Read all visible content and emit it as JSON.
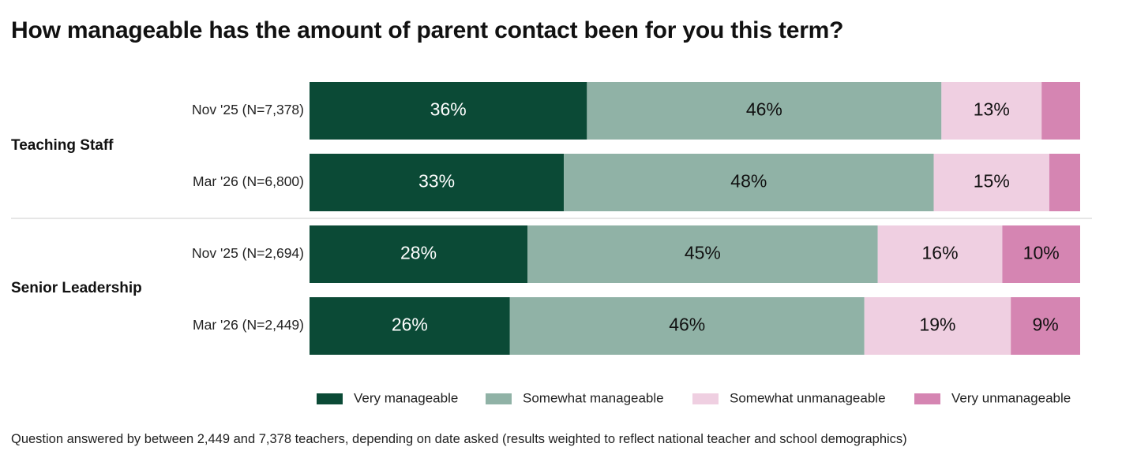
{
  "title": "How manageable has the amount of parent contact been for you this term?",
  "footnote": "Question answered by between 2,449 and 7,378 teachers, depending on date asked (results weighted to reflect national teacher and school demographics)",
  "chart_data": {
    "type": "bar",
    "orientation": "horizontal",
    "stacked": "100%",
    "title": "How manageable has the amount of parent contact been for you this term?",
    "legend_position": "bottom",
    "series": [
      {
        "name": "Very manageable",
        "color": "#0b4a36",
        "text_color": "#ffffff"
      },
      {
        "name": "Somewhat manageable",
        "color": "#90b2a6",
        "text_color": "#111111"
      },
      {
        "name": "Somewhat unmanageable",
        "color": "#efcfe1",
        "text_color": "#111111"
      },
      {
        "name": "Very unmanageable",
        "color": "#d585b2",
        "text_color": "#111111"
      }
    ],
    "groups": [
      {
        "name": "Teaching Staff",
        "rows": [
          {
            "label": "Nov '25 (N=7,378)",
            "values": [
              36,
              46,
              13,
              5
            ],
            "labels": [
              "36%",
              "46%",
              "13%",
              ""
            ]
          },
          {
            "label": "Mar '26 (N=6,800)",
            "values": [
              33,
              48,
              15,
              4
            ],
            "labels": [
              "33%",
              "48%",
              "15%",
              ""
            ]
          }
        ]
      },
      {
        "name": "Senior Leadership",
        "rows": [
          {
            "label": "Nov '25 (N=2,694)",
            "values": [
              28,
              45,
              16,
              10
            ],
            "labels": [
              "28%",
              "45%",
              "16%",
              "10%"
            ]
          },
          {
            "label": "Mar '26 (N=2,449)",
            "values": [
              26,
              46,
              19,
              9
            ],
            "labels": [
              "26%",
              "46%",
              "19%",
              "9%"
            ]
          }
        ]
      }
    ]
  }
}
